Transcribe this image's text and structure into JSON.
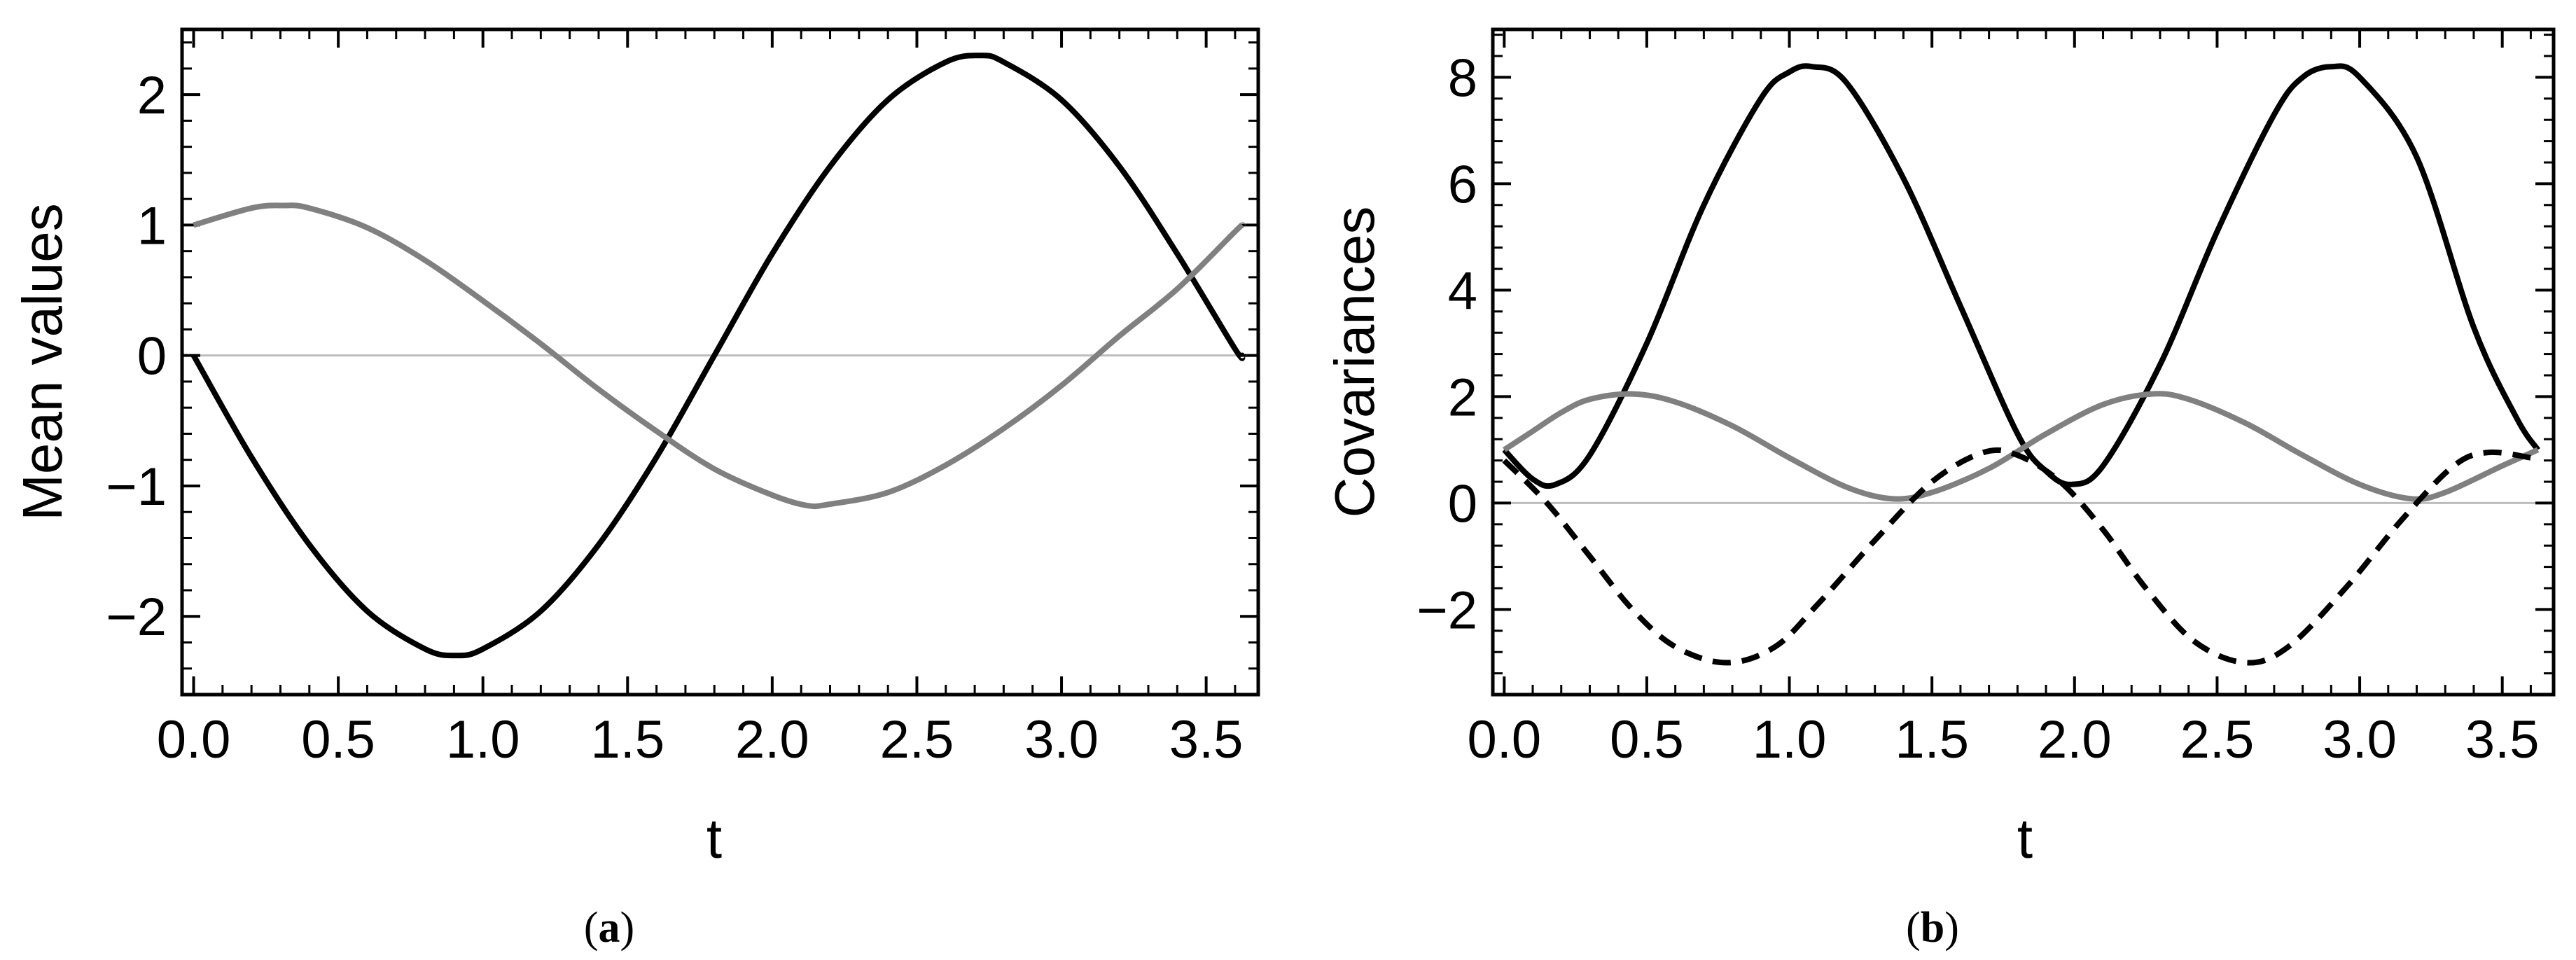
{
  "chart_data": [
    {
      "type": "line",
      "id": "a",
      "caption": {
        "open": "(",
        "letter": "a",
        "close": ")"
      },
      "xlabel": "t",
      "ylabel": "Mean values",
      "xlim": [
        -0.04,
        3.68
      ],
      "ylim": [
        -2.6,
        2.5
      ],
      "xticks": [
        "0.0",
        "0.5",
        "1.0",
        "1.5",
        "2.0",
        "2.5",
        "3.0",
        "3.5"
      ],
      "yticks": [
        "−2",
        "−1",
        "0",
        "1",
        "2"
      ],
      "xtick_values": [
        0,
        0.5,
        1.0,
        1.5,
        2.0,
        2.5,
        3.0,
        3.5
      ],
      "ytick_values": [
        -2,
        -1,
        0,
        1,
        2
      ],
      "zero_line": true,
      "grid": false,
      "series": [
        {
          "color": "#000000",
          "dash": "solid",
          "x": [
            0,
            0.2,
            0.4,
            0.6,
            0.8,
            0.906,
            1.0,
            1.2,
            1.4,
            1.6,
            1.8,
            2.0,
            2.2,
            2.4,
            2.6,
            2.719,
            2.8,
            3.0,
            3.2,
            3.4,
            3.6,
            3.625
          ],
          "y": [
            0,
            -0.78,
            -1.45,
            -1.96,
            -2.25,
            -2.3,
            -2.25,
            -1.96,
            -1.45,
            -0.78,
            0,
            0.78,
            1.45,
            1.96,
            2.25,
            2.3,
            2.25,
            1.96,
            1.45,
            0.78,
            0.05,
            0
          ]
        },
        {
          "color": "#808080",
          "dash": "solid",
          "x": [
            0,
            0.2,
            0.31,
            0.4,
            0.6,
            0.8,
            1.0,
            1.2,
            1.4,
            1.6,
            1.8,
            2.0,
            2.12,
            2.2,
            2.4,
            2.6,
            2.8,
            3.0,
            3.2,
            3.4,
            3.6,
            3.625
          ],
          "y": [
            1.0,
            1.13,
            1.15,
            1.13,
            0.98,
            0.73,
            0.42,
            0.09,
            -0.26,
            -0.58,
            -0.87,
            -1.07,
            -1.15,
            -1.14,
            -1.05,
            -0.84,
            -0.56,
            -0.23,
            0.15,
            0.51,
            0.95,
            1.0
          ]
        }
      ]
    },
    {
      "type": "line",
      "id": "b",
      "caption": {
        "open": "(",
        "letter": "b",
        "close": ")"
      },
      "xlabel": "t",
      "ylabel": "Covariances",
      "xlim": [
        -0.04,
        3.68
      ],
      "ylim": [
        -3.6,
        8.9
      ],
      "xticks": [
        "0.0",
        "0.5",
        "1.0",
        "1.5",
        "2.0",
        "2.5",
        "3.0",
        "3.5"
      ],
      "yticks": [
        "−2",
        "0",
        "2",
        "4",
        "6",
        "8"
      ],
      "xtick_values": [
        0,
        0.5,
        1.0,
        1.5,
        2.0,
        2.5,
        3.0,
        3.5
      ],
      "ytick_values": [
        -2,
        0,
        2,
        4,
        6,
        8
      ],
      "zero_line": true,
      "grid": false,
      "series": [
        {
          "color": "#000000",
          "dash": "solid",
          "x": [
            0,
            0.1,
            0.18,
            0.3,
            0.5,
            0.7,
            0.9,
            1.0,
            1.08,
            1.2,
            1.4,
            1.6,
            1.8,
            1.9,
            1.99,
            2.1,
            2.3,
            2.5,
            2.7,
            2.8,
            2.9,
            3.0,
            3.2,
            3.4,
            3.55,
            3.625
          ],
          "y": [
            1.0,
            0.45,
            0.35,
            0.9,
            3.0,
            5.6,
            7.6,
            8.1,
            8.2,
            7.9,
            6.1,
            3.7,
            1.3,
            0.6,
            0.35,
            0.7,
            2.6,
            5.1,
            7.3,
            8.0,
            8.2,
            8.0,
            6.5,
            3.3,
            1.6,
            1.0
          ]
        },
        {
          "color": "#808080",
          "dash": "solid",
          "x": [
            0,
            0.1,
            0.2,
            0.3,
            0.45,
            0.6,
            0.8,
            1.0,
            1.2,
            1.36,
            1.5,
            1.7,
            1.9,
            2.1,
            2.27,
            2.4,
            2.6,
            2.8,
            3.0,
            3.18,
            3.3,
            3.5,
            3.625
          ],
          "y": [
            1.0,
            1.35,
            1.7,
            1.95,
            2.05,
            1.9,
            1.45,
            0.85,
            0.3,
            0.08,
            0.2,
            0.65,
            1.3,
            1.85,
            2.05,
            1.95,
            1.5,
            0.9,
            0.35,
            0.08,
            0.2,
            0.7,
            1.0
          ]
        },
        {
          "color": "#000000",
          "dash": "dashed",
          "x": [
            0,
            0.15,
            0.3,
            0.45,
            0.6,
            0.78,
            0.95,
            1.1,
            1.3,
            1.5,
            1.68,
            1.8,
            1.95,
            2.1,
            2.25,
            2.42,
            2.6,
            2.75,
            2.95,
            3.15,
            3.33,
            3.45,
            3.6,
            3.625
          ],
          "y": [
            0.8,
            0.0,
            -1.0,
            -2.0,
            -2.7,
            -3.0,
            -2.7,
            -1.9,
            -0.7,
            0.4,
            0.95,
            0.9,
            0.4,
            -0.5,
            -1.6,
            -2.6,
            -3.0,
            -2.7,
            -1.6,
            -0.3,
            0.7,
            0.95,
            0.85,
            0.8
          ]
        }
      ]
    }
  ]
}
